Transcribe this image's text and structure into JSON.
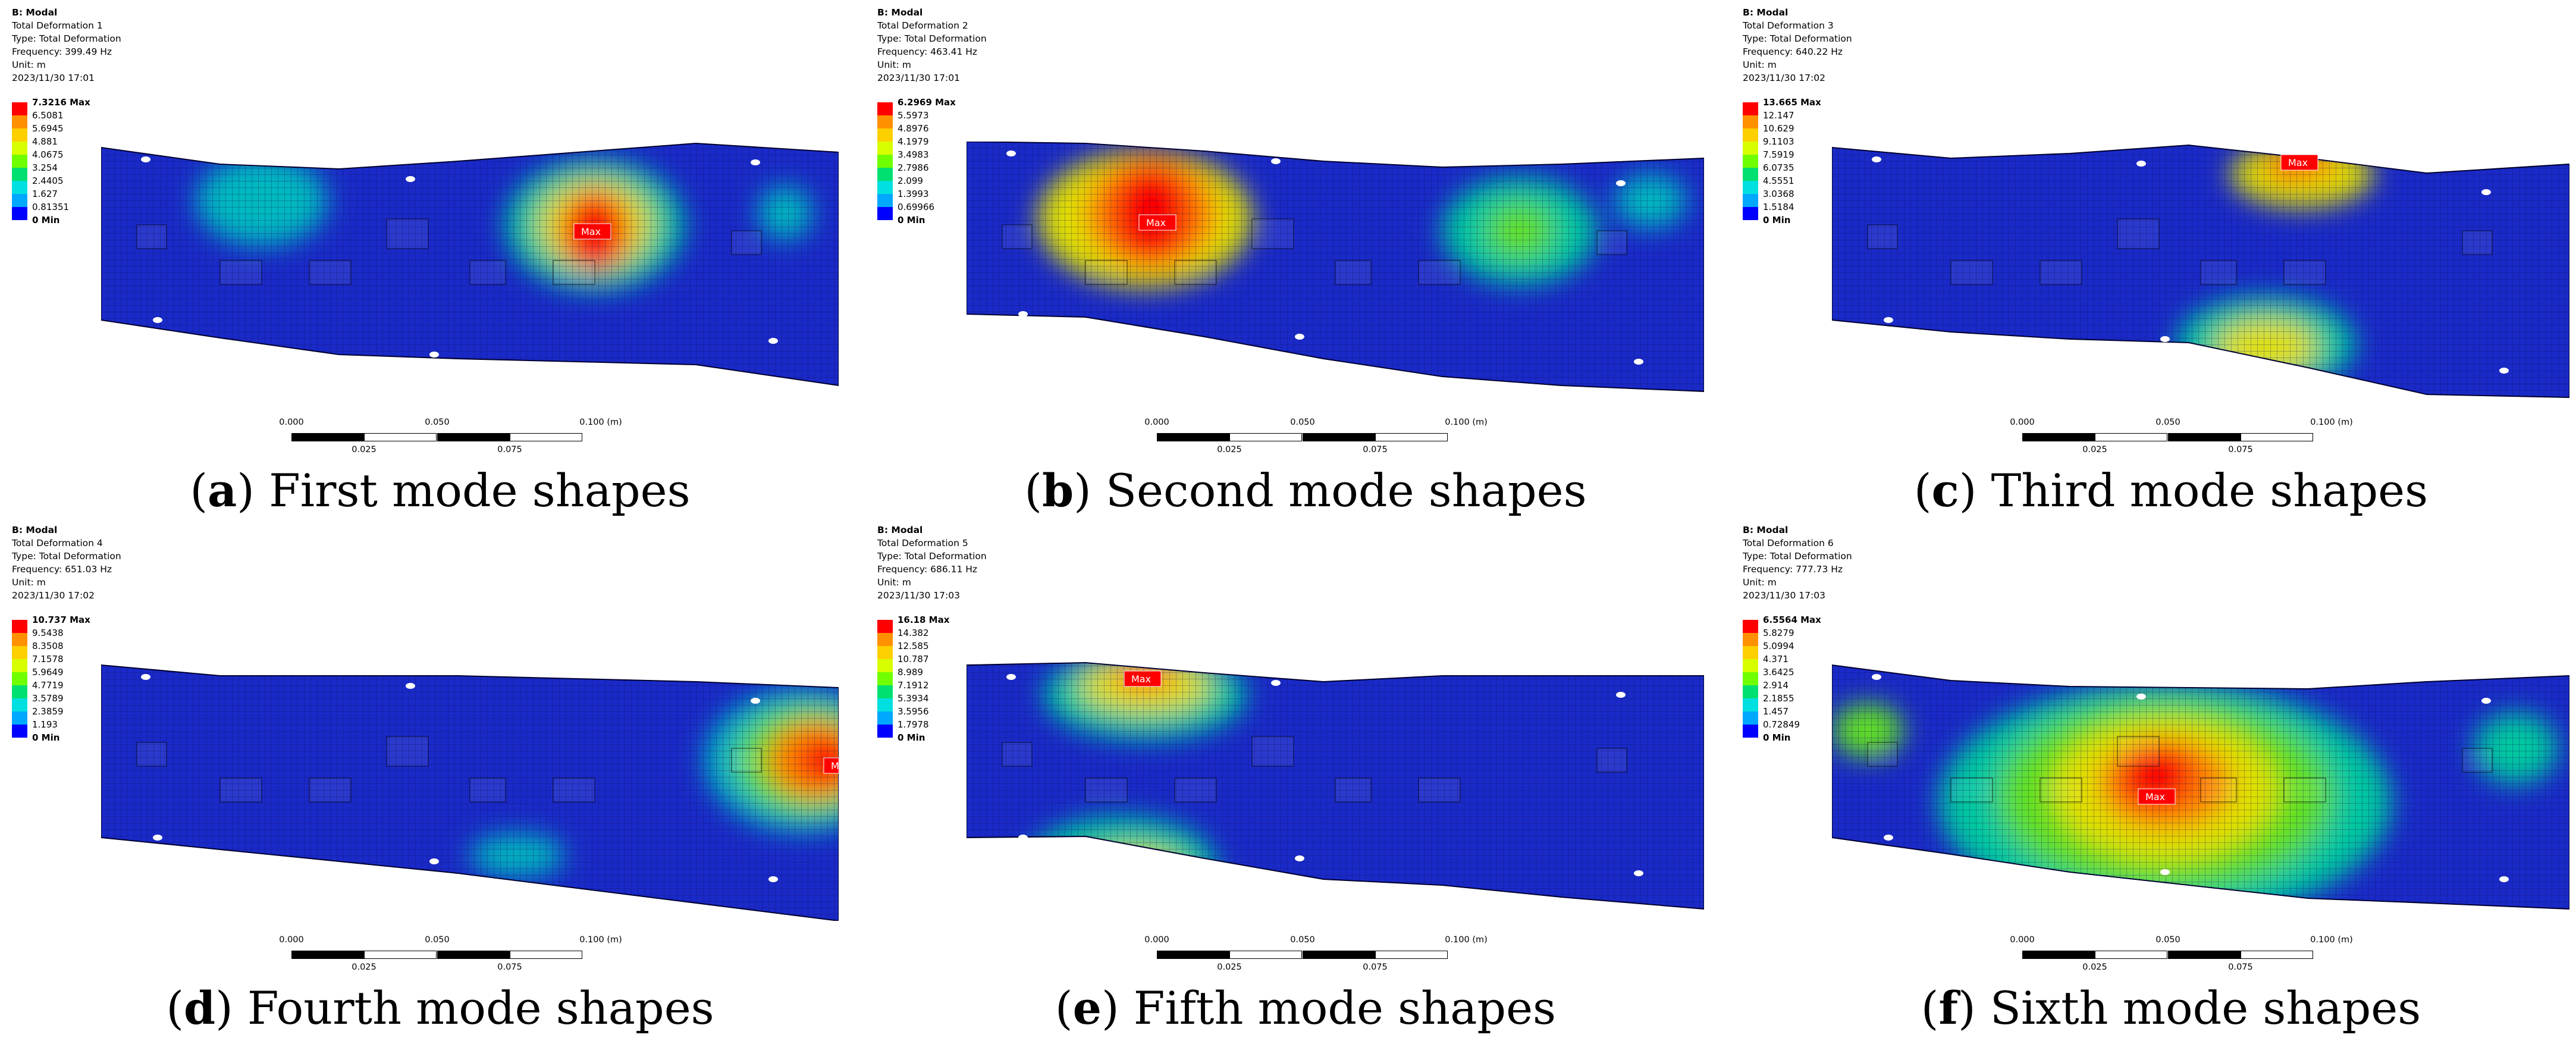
{
  "panels": [
    {
      "id": "a",
      "analysis": "B: Modal",
      "name": "Total Deformation 1",
      "type": "Type: Total Deformation",
      "freq": "Frequency: 399.49 Hz",
      "unit": "Unit: m",
      "date": "2023/11/30 17:01",
      "legend": [
        "7.3216 Max",
        "6.5081",
        "5.6945",
        "4.881",
        "4.0675",
        "3.254",
        "2.4405",
        "1.627",
        "0.81351",
        "0 Min"
      ],
      "caption_letter": "a",
      "caption_text": " First mode shapes"
    },
    {
      "id": "b",
      "analysis": "B: Modal",
      "name": "Total Deformation 2",
      "type": "Type: Total Deformation",
      "freq": "Frequency: 463.41 Hz",
      "unit": "Unit: m",
      "date": "2023/11/30 17:01",
      "legend": [
        "6.2969 Max",
        "5.5973",
        "4.8976",
        "4.1979",
        "3.4983",
        "2.7986",
        "2.099",
        "1.3993",
        "0.69966",
        "0 Min"
      ],
      "caption_letter": "b",
      "caption_text": " Second mode shapes"
    },
    {
      "id": "c",
      "analysis": "B: Modal",
      "name": "Total Deformation 3",
      "type": "Type: Total Deformation",
      "freq": "Frequency: 640.22 Hz",
      "unit": "Unit: m",
      "date": "2023/11/30 17:02",
      "legend": [
        "13.665 Max",
        "12.147",
        "10.629",
        "9.1103",
        "7.5919",
        "6.0735",
        "4.5551",
        "3.0368",
        "1.5184",
        "0 Min"
      ],
      "caption_letter": "c",
      "caption_text": " Third mode shapes"
    },
    {
      "id": "d",
      "analysis": "B: Modal",
      "name": "Total Deformation 4",
      "type": "Type: Total Deformation",
      "freq": "Frequency: 651.03 Hz",
      "unit": "Unit: m",
      "date": "2023/11/30 17:02",
      "legend": [
        "10.737 Max",
        "9.5438",
        "8.3508",
        "7.1578",
        "5.9649",
        "4.7719",
        "3.5789",
        "2.3859",
        "1.193",
        "0 Min"
      ],
      "caption_letter": "d",
      "caption_text": " Fourth mode shapes"
    },
    {
      "id": "e",
      "analysis": "B: Modal",
      "name": "Total Deformation 5",
      "type": "Type: Total Deformation",
      "freq": "Frequency: 686.11 Hz",
      "unit": "Unit: m",
      "date": "2023/11/30 17:03",
      "legend": [
        "16.18 Max",
        "14.382",
        "12.585",
        "10.787",
        "8.989",
        "7.1912",
        "5.3934",
        "3.5956",
        "1.7978",
        "0 Min"
      ],
      "caption_letter": "e",
      "caption_text": " Fifth mode shapes"
    },
    {
      "id": "f",
      "analysis": "B: Modal",
      "name": "Total Deformation 6",
      "type": "Type: Total Deformation",
      "freq": "Frequency: 777.73 Hz",
      "unit": "Unit: m",
      "date": "2023/11/30 17:03",
      "legend": [
        "6.5564 Max",
        "5.8279",
        "5.0994",
        "4.371",
        "3.6425",
        "2.914",
        "2.1855",
        "1.457",
        "0.72849",
        "0 Min"
      ],
      "caption_letter": "f",
      "caption_text": " Sixth mode shapes"
    }
  ],
  "max_label": "Max",
  "scale": {
    "top": [
      "0.000",
      "0.050",
      "0.100 (m)"
    ],
    "bottom": [
      "0.025",
      "0.075"
    ]
  },
  "legend_colors": [
    "#ff0000",
    "#ff9000",
    "#ffd000",
    "#d8ff00",
    "#70ff00",
    "#00e070",
    "#00e0e0",
    "#00a8ff",
    "#0000ff"
  ],
  "colors": {
    "plate_base": "#1a2ac8",
    "mesh_line": "#0a0a4a"
  }
}
